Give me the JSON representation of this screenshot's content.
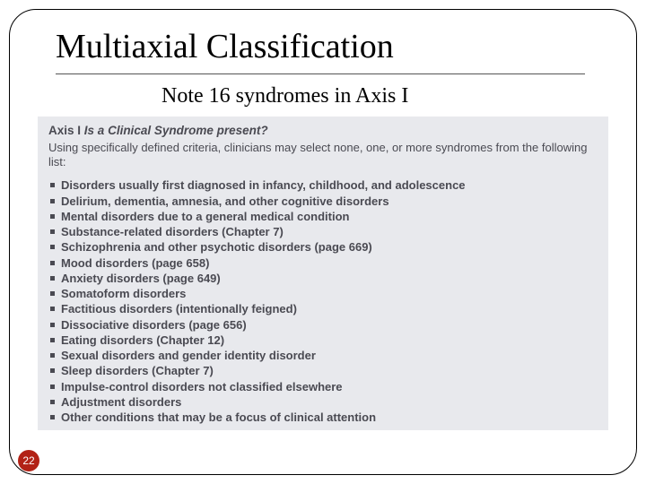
{
  "slide": {
    "title": "Multiaxial Classification",
    "subtitle": "Note 16 syndromes in Axis I",
    "page_number": "22",
    "title_fontsize": 38,
    "subtitle_fontsize": 24,
    "colors": {
      "background": "#ffffff",
      "frame_border": "#000000",
      "panel_bg": "#e8e9ed",
      "panel_text": "#4a4a52",
      "pagenum_bg": "#b22216",
      "pagenum_text": "#ffffff"
    }
  },
  "panel": {
    "heading_axis": "Axis I",
    "heading_rest": "Is a Clinical Syndrome present?",
    "intro": "Using specifically defined criteria, clinicians may select none, one, or more syndromes from the following list:",
    "items": [
      "Disorders usually first diagnosed in infancy, childhood, and adolescence",
      "Delirium, dementia, amnesia, and other cognitive disorders",
      "Mental disorders due to a general medical condition",
      "Substance-related disorders (Chapter 7)",
      "Schizophrenia and other psychotic disorders (page 669)",
      "Mood disorders (page 658)",
      "Anxiety disorders (page 649)",
      "Somatoform disorders",
      "Factitious disorders (intentionally feigned)",
      "Dissociative disorders (page 656)",
      "Eating disorders (Chapter 12)",
      "Sexual disorders and gender identity disorder",
      "Sleep disorders (Chapter 7)",
      "Impulse-control disorders not classified elsewhere",
      "Adjustment disorders",
      "Other conditions that may be a focus of clinical attention"
    ],
    "bullet_shape": "square",
    "item_fontsize": 13,
    "item_fontweight": 700
  }
}
